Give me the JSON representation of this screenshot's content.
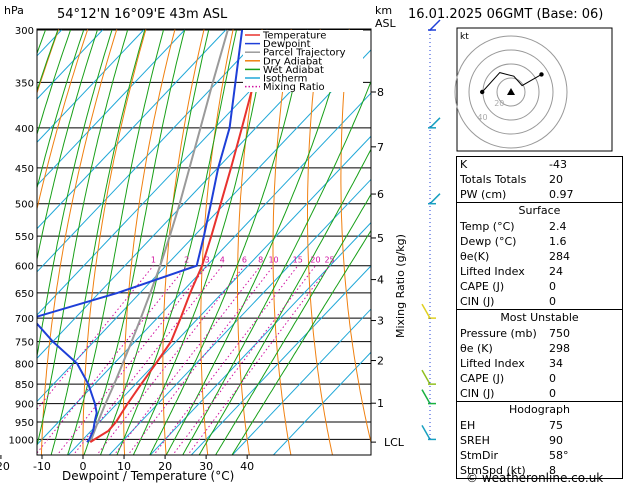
{
  "header": {
    "hpa_label": "hPa",
    "location": "54°12'N  16°09'E  43m  ASL",
    "km_label": "km",
    "asl_label": "ASL",
    "datetime": "16.01.2025  06GMT  (Base: 06)"
  },
  "chart_data": {
    "type": "skew-t",
    "pressure_levels": [
      300,
      350,
      400,
      450,
      500,
      550,
      600,
      650,
      700,
      750,
      800,
      850,
      900,
      950,
      1000
    ],
    "x_ticks": [
      -30,
      -20,
      -10,
      0,
      10,
      20,
      30,
      40
    ],
    "xlim": [
      -40,
      40
    ],
    "ylim": [
      1050,
      300
    ],
    "xlabel": "Dewpoint / Temperature (°C)",
    "mixing_ratio_label": "Mixing Ratio (g/kg)",
    "mixing_ratios": [
      1,
      2,
      3,
      4,
      6,
      8,
      10,
      15,
      20,
      25
    ],
    "mixing_ratio_labels": [
      "1",
      "2",
      "3",
      "4",
      "6",
      "8",
      "10",
      "15",
      "20",
      "25"
    ],
    "km_levels": [
      {
        "km": "8",
        "p": 360
      },
      {
        "km": "7",
        "p": 423
      },
      {
        "km": "6",
        "p": 486
      },
      {
        "km": "5",
        "p": 553
      },
      {
        "km": "4",
        "p": 625
      },
      {
        "km": "3",
        "p": 705
      },
      {
        "km": "2",
        "p": 793
      },
      {
        "km": "1",
        "p": 899
      },
      {
        "km": "LCL",
        "p": 1008
      }
    ],
    "temperature": [
      {
        "p": 1008,
        "t": 2.4
      },
      {
        "p": 1000,
        "t": 2.8
      },
      {
        "p": 975,
        "t": 4.2
      },
      {
        "p": 950,
        "t": 4.0
      },
      {
        "p": 925,
        "t": 3.3
      },
      {
        "p": 900,
        "t": 2.6
      },
      {
        "p": 850,
        "t": 1.4
      },
      {
        "p": 800,
        "t": 0.2
      },
      {
        "p": 750,
        "t": -1.2
      },
      {
        "p": 700,
        "t": -4.3
      },
      {
        "p": 650,
        "t": -7.8
      },
      {
        "p": 600,
        "t": -11.2
      },
      {
        "p": 550,
        "t": -15.8
      },
      {
        "p": 500,
        "t": -21.0
      },
      {
        "p": 450,
        "t": -26.8
      },
      {
        "p": 400,
        "t": -33.4
      },
      {
        "p": 350,
        "t": -41.0
      },
      {
        "p": 300,
        "t": -49.7
      }
    ],
    "dewpoint": [
      {
        "p": 1008,
        "t": 1.6
      },
      {
        "p": 1000,
        "t": 1.5
      },
      {
        "p": 975,
        "t": 0.5
      },
      {
        "p": 950,
        "t": -1.2
      },
      {
        "p": 925,
        "t": -2.8
      },
      {
        "p": 900,
        "t": -5.4
      },
      {
        "p": 850,
        "t": -11.5
      },
      {
        "p": 800,
        "t": -19.0
      },
      {
        "p": 750,
        "t": -30.0
      },
      {
        "p": 700,
        "t": -40.5
      },
      {
        "p": 650,
        "t": -25.5
      },
      {
        "p": 600,
        "t": -12.5
      },
      {
        "p": 550,
        "t": -17.6
      },
      {
        "p": 500,
        "t": -23.4
      },
      {
        "p": 450,
        "t": -29.9
      },
      {
        "p": 400,
        "t": -36.4
      },
      {
        "p": 350,
        "t": -45.5
      },
      {
        "p": 300,
        "t": -56.0
      }
    ],
    "parcel": [
      {
        "p": 1008,
        "t": 2.4
      },
      {
        "p": 950,
        "t": -0.4
      },
      {
        "p": 900,
        "t": -2.8
      },
      {
        "p": 850,
        "t": -5.2
      },
      {
        "p": 800,
        "t": -7.9
      },
      {
        "p": 750,
        "t": -10.8
      },
      {
        "p": 700,
        "t": -14.0
      },
      {
        "p": 650,
        "t": -17.5
      },
      {
        "p": 600,
        "t": -21.4
      },
      {
        "p": 550,
        "t": -25.9
      },
      {
        "p": 500,
        "t": -31.0
      },
      {
        "p": 450,
        "t": -36.9
      },
      {
        "p": 400,
        "t": -43.5
      },
      {
        "p": 350,
        "t": -51.0
      },
      {
        "p": 300,
        "t": -59.5
      }
    ],
    "legend": [
      {
        "label": "Temperature",
        "color": "#e8322e"
      },
      {
        "label": "Dewpoint",
        "color": "#1e3fd8"
      },
      {
        "label": "Parcel Trajectory",
        "color": "#9a9a9a"
      },
      {
        "label": "Dry Adiabat",
        "color": "#f08010"
      },
      {
        "label": "Wet Adiabat",
        "color": "#18a018"
      },
      {
        "label": "Isotherm",
        "color": "#20a8d8"
      },
      {
        "label": "Mixing Ratio",
        "color": "#d010a0"
      }
    ]
  },
  "hodograph": {
    "label": "kt",
    "ring_labels": [
      "20",
      "40"
    ],
    "points": [
      {
        "dir": 90,
        "spd": 18
      },
      {
        "dir": 150,
        "spd": 14
      },
      {
        "dir": 190,
        "spd": 10
      },
      {
        "dir": 240,
        "spd": 8
      },
      {
        "dir": 240,
        "spd": 22
      }
    ]
  },
  "indices": {
    "basic": [
      {
        "label": "K",
        "value": "-43"
      },
      {
        "label": "Totals Totals",
        "value": "20"
      },
      {
        "label": "PW (cm)",
        "value": "0.97"
      }
    ],
    "surface_title": "Surface",
    "surface": [
      {
        "label": "Temp (°C)",
        "value": "2.4"
      },
      {
        "label": "Dewp (°C)",
        "value": "1.6"
      },
      {
        "label": "θe(K)",
        "value": "284"
      },
      {
        "label": "Lifted Index",
        "value": "24"
      },
      {
        "label": "CAPE (J)",
        "value": "0"
      },
      {
        "label": "CIN (J)",
        "value": "0"
      }
    ],
    "unstable_title": "Most Unstable",
    "unstable": [
      {
        "label": "Pressure (mb)",
        "value": "750"
      },
      {
        "label": "θe (K)",
        "value": "298"
      },
      {
        "label": "Lifted Index",
        "value": "34"
      },
      {
        "label": "CAPE (J)",
        "value": "0"
      },
      {
        "label": "CIN (J)",
        "value": "0"
      }
    ],
    "hodo_title": "Hodograph",
    "hodo": [
      {
        "label": "EH",
        "value": "75"
      },
      {
        "label": "SREH",
        "value": "90"
      },
      {
        "label": "StmDir",
        "value": "58°"
      },
      {
        "label": "StmSpd (kt)",
        "value": "8"
      }
    ]
  },
  "footer": {
    "copyright": "© weatheronline.co.uk"
  }
}
